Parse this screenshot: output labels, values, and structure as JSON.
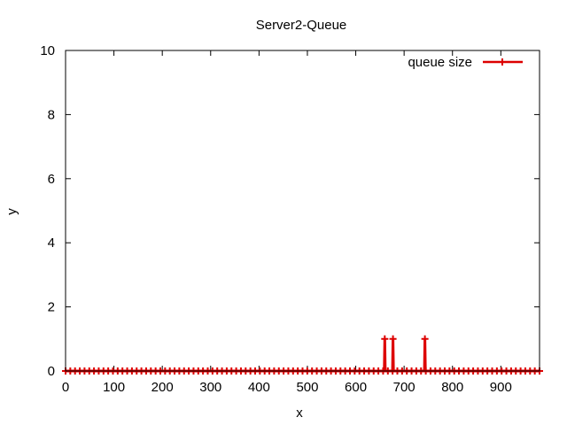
{
  "chart_data": {
    "type": "line",
    "title": "Server2-Queue",
    "xlabel": "x",
    "ylabel": "y",
    "xlim": [
      0,
      980
    ],
    "ylim": [
      0,
      10
    ],
    "xticks": [
      0,
      100,
      200,
      300,
      400,
      500,
      600,
      700,
      800,
      900
    ],
    "yticks": [
      0,
      2,
      4,
      6,
      8,
      10
    ],
    "grid": false,
    "legend_position": "top-right",
    "series": [
      {
        "name": "queue size",
        "color": "#dd0000",
        "style": "linespoints",
        "points": [
          {
            "x": 0,
            "y": 0
          },
          {
            "x": 659,
            "y": 0
          },
          {
            "x": 660,
            "y": 1
          },
          {
            "x": 661,
            "y": 0
          },
          {
            "x": 676,
            "y": 0
          },
          {
            "x": 677,
            "y": 1
          },
          {
            "x": 678,
            "y": 0
          },
          {
            "x": 742,
            "y": 0
          },
          {
            "x": 743,
            "y": 1
          },
          {
            "x": 744,
            "y": 0
          },
          {
            "x": 980,
            "y": 0
          }
        ],
        "baseline_marker_count": 100
      }
    ]
  }
}
